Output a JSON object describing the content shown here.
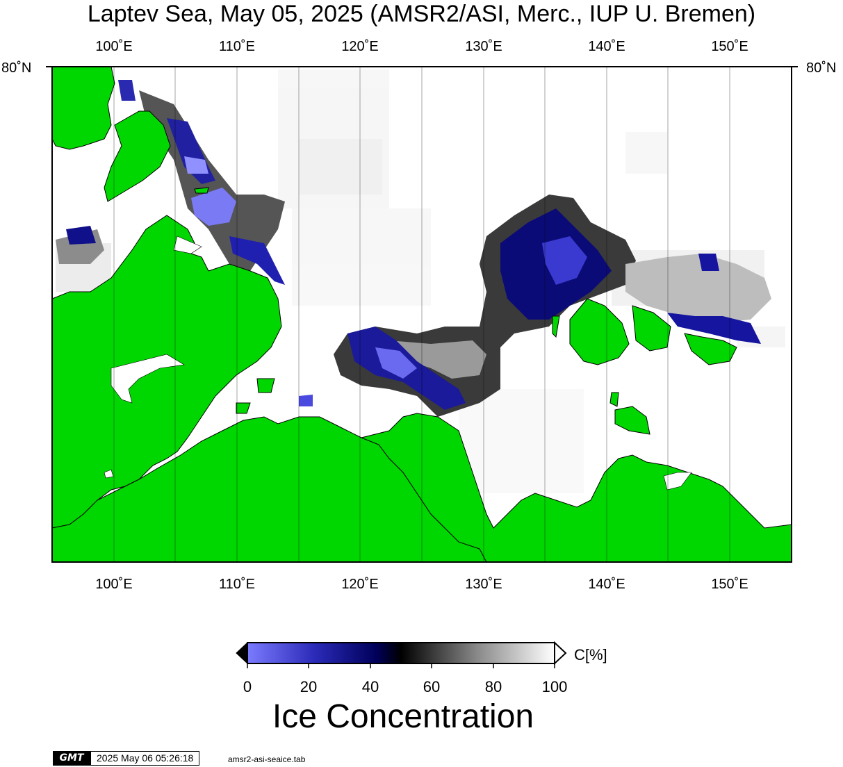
{
  "title": "Laptev Sea, May 05, 2025 (AMSR2/ASI, Merc., IUP U. Bremen)",
  "longitude_labels": [
    "100˚E",
    "110˚E",
    "120˚E",
    "130˚E",
    "140˚E",
    "150˚E"
  ],
  "latitude_label": "80˚N",
  "colorbar": {
    "unit": "C[%]",
    "ticks": [
      "0",
      "20",
      "40",
      "60",
      "80",
      "100"
    ],
    "title": "Ice Concentration",
    "colors": {
      "low": "#7b7bff",
      "mid_low": "#00006e",
      "mid": "#000000",
      "high": "#ffffff"
    }
  },
  "footer": {
    "logo": "GMT",
    "timestamp": "2025 May 06 05:26:18",
    "source": "amsr2-asi-seaice.tab"
  },
  "colors": {
    "land": "#00d700",
    "ocean": "#ffffff",
    "grid": "#000000"
  }
}
